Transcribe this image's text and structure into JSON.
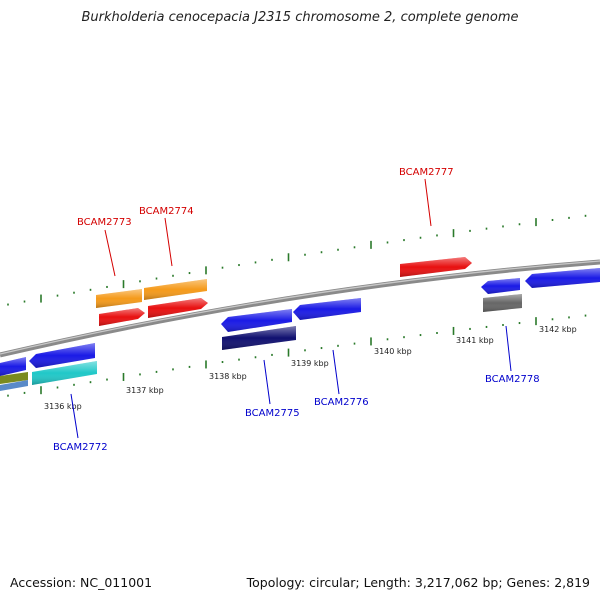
{
  "title": "Burkholderia cenocepacia J2315 chromosome 2, complete genome",
  "footer": {
    "accession": "Accession: NC_011001",
    "summary": "Topology: circular; Length: 3,217,062 bp; Genes: 2,819"
  },
  "ticks": [
    {
      "label": "3136 kbp"
    },
    {
      "label": "3137 kbp"
    },
    {
      "label": "3138 kbp"
    },
    {
      "label": "3139 kbp"
    },
    {
      "label": "3140 kbp"
    },
    {
      "label": "3141 kbp"
    },
    {
      "label": "3142 kbp"
    }
  ],
  "labels": [
    {
      "name": "BCAM2773",
      "strand": "forward",
      "color": "#d40000"
    },
    {
      "name": "BCAM2774",
      "strand": "forward",
      "color": "#d40000"
    },
    {
      "name": "BCAM2777",
      "strand": "forward",
      "color": "#d40000"
    },
    {
      "name": "BCAM2772",
      "strand": "reverse",
      "color": "#0000cc"
    },
    {
      "name": "BCAM2775",
      "strand": "reverse",
      "color": "#0000cc"
    },
    {
      "name": "BCAM2776",
      "strand": "reverse",
      "color": "#0000cc"
    },
    {
      "name": "BCAM2778",
      "strand": "reverse",
      "color": "#0000cc"
    }
  ],
  "colors": {
    "backbone": "#8a8a8a",
    "tick": "#2a7a2a",
    "orange": "#f59a1a",
    "red": "#e81010",
    "blue": "#1a1ae6",
    "navy": "#101070",
    "cyan": "#20c8c8",
    "gray": "#666666",
    "olive": "#7a8a20",
    "steel": "#5a8ac8"
  }
}
